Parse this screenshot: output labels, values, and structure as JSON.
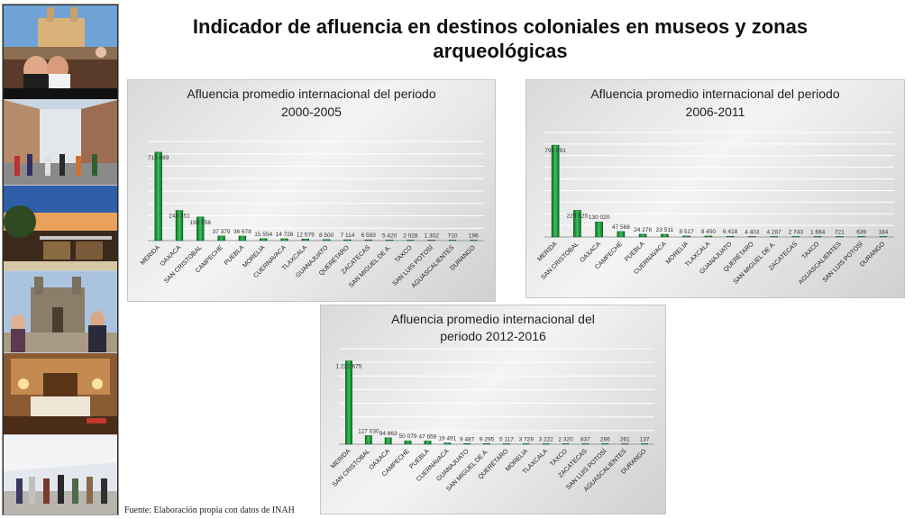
{
  "page": {
    "title": "Indicador de afluencia en destinos coloniales en museos y zonas arqueológicas",
    "source": "Fuente: Elaboración propia con datos de INAH"
  },
  "sidebar": {
    "photos": [
      {
        "name": "photo-rooftop-couple"
      },
      {
        "name": "photo-street-crowd"
      },
      {
        "name": "photo-terrace-sunset"
      },
      {
        "name": "photo-church-tourists"
      },
      {
        "name": "photo-hotel-room"
      },
      {
        "name": "photo-walkway-crowd"
      }
    ]
  },
  "colors": {
    "bar_light": "#39c25a",
    "bar_dark": "#0a6a22",
    "grid": "#ffffff"
  },
  "chart_data": [
    {
      "type": "bar",
      "title": "Afluencia promedio internacional del periodo 2000-2005",
      "title_lines": [
        "Afluencia promedio internacional del periodo",
        "2000-2005"
      ],
      "categories": [
        "MERIDA",
        "OAXACA",
        "SAN CRISTOBAL",
        "CAMPECHE",
        "PUEBLA",
        "MORELIA",
        "CUERNAVACA",
        "TLAXCALA",
        "GUANAJUATO",
        "QUERÉTARO",
        "ZACATECAS",
        "SAN MIGUEL DE A.",
        "TAXCO",
        "SAN LUIS POTOSÍ",
        "AGUASCALIENTES",
        "DURANGO"
      ],
      "values": [
        713689,
        243351,
        190556,
        37379,
        36678,
        15554,
        14726,
        12579,
        8500,
        7114,
        6593,
        5420,
        2028,
        1302,
        710,
        196
      ],
      "labels": [
        "713 689",
        "243 351",
        "190 556",
        "37 379",
        "36 678",
        "15 554",
        "14 726",
        "12 579",
        "8 500",
        "7 114",
        "6 593",
        "5 420",
        "2 028",
        "1 302",
        "710",
        "196"
      ],
      "ylim": [
        0,
        800000
      ],
      "grid": true
    },
    {
      "type": "bar",
      "title": "Afluencia promedio internacional del periodo 2006-2011",
      "title_lines": [
        "Afluencia promedio internacional del periodo",
        "2006-2011"
      ],
      "categories": [
        "MERIDA",
        "SAN CRISTOBAL",
        "OAXACA",
        "CAMPECHE",
        "PUEBLA",
        "CUERNAVACA",
        "MORELIA",
        "TLAXCALA",
        "GUANAJUATO",
        "QUERÉTARO",
        "SAN MIGUEL DE A.",
        "ZACATECAS",
        "TAXCO",
        "AGUASCALIENTES",
        "SAN LUIS POTOSÍ",
        "DURANGO"
      ],
      "values": [
        791091,
        229525,
        130020,
        47568,
        24276,
        23511,
        8517,
        8450,
        6418,
        4403,
        4287,
        2743,
        1664,
        721,
        639,
        184
      ],
      "labels": [
        "791 091",
        "229 525",
        "130 020",
        "47 568",
        "24 276",
        "23 511",
        "8 517",
        "8 450",
        "6 418",
        "4 403",
        "4 287",
        "2 743",
        "1 664",
        "721",
        "639",
        "184"
      ],
      "ylim": [
        0,
        900000
      ],
      "grid": true
    },
    {
      "type": "bar",
      "title": "Afluencia promedio internacional del periodo 2012-2016",
      "title_lines": [
        "Afluencia  promedio internacional del",
        "periodo 2012-2016"
      ],
      "categories": [
        "MERIDA",
        "SAN CRISTOBAL",
        "OAXACA",
        "CAMPECHE",
        "PUEBLA",
        "CUERNAVACA",
        "GUANAJUATO",
        "SAN MIGUEL DE A.",
        "QUERÉTARO",
        "MORELIA",
        "TLAXCALA",
        "TAXCO",
        "ZACATECAS",
        "SAN LUIS POTOSÍ",
        "AGUASCALIENTES",
        "DURANGO"
      ],
      "values": [
        1221675,
        127030,
        94863,
        50079,
        47658,
        19491,
        9487,
        9295,
        5117,
        3729,
        3222,
        2320,
        837,
        266,
        261,
        137
      ],
      "labels": [
        "1 221 675",
        "127 030",
        "94 863",
        "50 079",
        "47 658",
        "19 491",
        "9 487",
        "9 295",
        "5 117",
        "3 729",
        "3 222",
        "2 320",
        "837",
        "266",
        "261",
        "137"
      ],
      "ylim": [
        0,
        1400000
      ],
      "grid": true
    }
  ]
}
